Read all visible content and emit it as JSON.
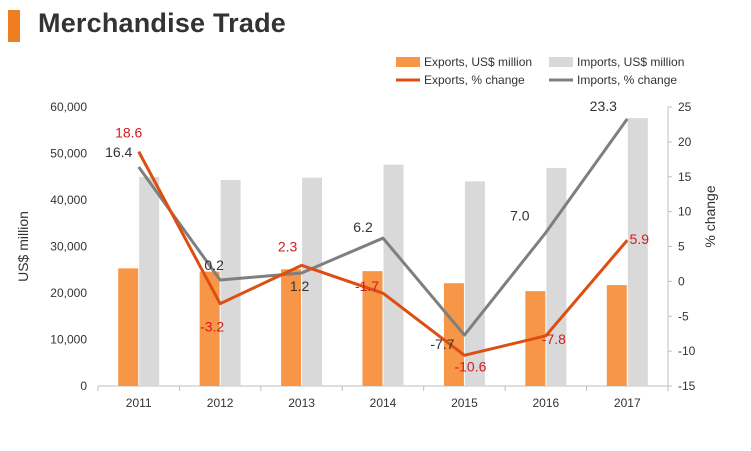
{
  "header": {
    "title": "Merchandise Trade"
  },
  "colors": {
    "accent": "#ef7d22",
    "exports_bar": "#f79646",
    "imports_bar": "#d9d9d9",
    "exports_line": "#dd4e12",
    "imports_line": "#7f7f7f",
    "exports_label": "#d7191c",
    "axis_text": "#333333",
    "axis_line": "#bfbfbf"
  },
  "chart_data": {
    "type": "bar",
    "categories": [
      "2011",
      "2012",
      "2013",
      "2014",
      "2015",
      "2016",
      "2017"
    ],
    "y_left": {
      "label": "US$ million",
      "range": [
        0,
        60000
      ],
      "ticks": [
        "0",
        "10,000",
        "20,000",
        "30,000",
        "40,000",
        "50,000",
        "60,000"
      ],
      "tick_values": [
        0,
        10000,
        20000,
        30000,
        40000,
        50000,
        60000
      ]
    },
    "y_right": {
      "label": "% change",
      "range": [
        -15,
        25
      ],
      "ticks": [
        "-15",
        "-10",
        "-5",
        "0",
        "5",
        "10",
        "15",
        "20",
        "25"
      ],
      "tick_values": [
        -15,
        -10,
        -5,
        0,
        5,
        10,
        15,
        20,
        25
      ]
    },
    "grid": false,
    "legend": "top-right",
    "series": [
      {
        "name": "Exports, US$ million",
        "kind": "bar",
        "axis": "left",
        "values": [
          25300,
          24600,
          25100,
          24700,
          22100,
          20400,
          21700
        ]
      },
      {
        "name": "Imports, US$ million",
        "kind": "bar",
        "axis": "left",
        "values": [
          45000,
          44300,
          44800,
          47600,
          44000,
          46900,
          57600
        ]
      },
      {
        "name": "Exports, % change",
        "kind": "line",
        "axis": "right",
        "values": [
          18.6,
          -3.2,
          2.3,
          -1.7,
          -10.6,
          -7.8,
          5.9
        ],
        "labels": [
          "18.6",
          "-3.2",
          "2.3",
          "-1.7",
          "-10.6",
          "-7.8",
          "5.9"
        ]
      },
      {
        "name": "Imports, % change",
        "kind": "line",
        "axis": "right",
        "values": [
          16.4,
          0.2,
          1.2,
          6.2,
          -7.7,
          7.0,
          23.3
        ],
        "labels": [
          "16.4",
          "0.2",
          "1.2",
          "6.2",
          "-7.7",
          "7.0",
          "23.3"
        ]
      }
    ]
  }
}
